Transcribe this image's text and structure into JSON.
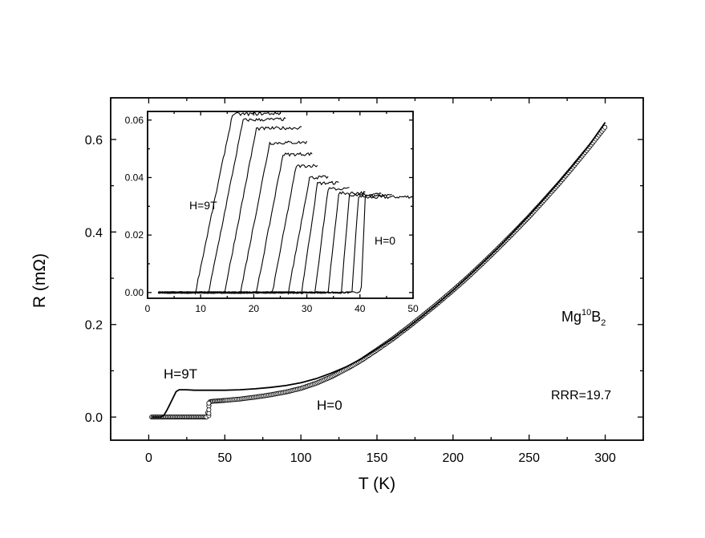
{
  "chart_data": [
    {
      "type": "line",
      "xlabel": "T (K)",
      "ylabel": "R (mΩ)",
      "xlim": [
        -25,
        325
      ],
      "ylim": [
        -0.05,
        0.69
      ],
      "xticks": [
        0,
        50,
        100,
        150,
        200,
        250,
        300
      ],
      "yticks": [
        0.0,
        0.2,
        0.4,
        0.6
      ],
      "ytick_labels": [
        "0.0",
        "0.2",
        "0.4",
        "0.6"
      ],
      "series": [
        {
          "name": "H=0",
          "marker": "open-circle",
          "x": [
            2,
            10,
            20,
            30,
            35,
            38,
            39,
            40,
            42,
            50,
            60,
            70,
            80,
            90,
            100,
            110,
            120,
            130,
            140,
            150,
            160,
            170,
            180,
            190,
            200,
            210,
            220,
            230,
            240,
            250,
            260,
            270,
            280,
            290,
            300
          ],
          "y": [
            0.0,
            0.0,
            0.0,
            0.0,
            0.0,
            0.0,
            0.012,
            0.033,
            0.034,
            0.036,
            0.039,
            0.043,
            0.048,
            0.054,
            0.062,
            0.073,
            0.087,
            0.104,
            0.123,
            0.145,
            0.168,
            0.193,
            0.219,
            0.246,
            0.274,
            0.303,
            0.334,
            0.366,
            0.399,
            0.433,
            0.469,
            0.506,
            0.545,
            0.585,
            0.627
          ]
        },
        {
          "name": "H=9T",
          "marker": "line",
          "x": [
            2,
            8,
            10,
            12,
            15,
            18,
            20,
            25,
            30,
            40,
            50,
            60,
            70,
            80,
            90,
            100,
            110,
            120,
            130,
            140,
            150,
            160,
            170,
            180,
            190,
            200,
            210,
            220,
            230,
            240,
            250,
            260,
            270,
            280,
            290,
            300
          ],
          "y": [
            0.0,
            0.0,
            0.004,
            0.015,
            0.035,
            0.055,
            0.059,
            0.059,
            0.058,
            0.058,
            0.058,
            0.059,
            0.061,
            0.064,
            0.068,
            0.074,
            0.083,
            0.095,
            0.109,
            0.126,
            0.147,
            0.169,
            0.193,
            0.219,
            0.246,
            0.274,
            0.304,
            0.335,
            0.367,
            0.401,
            0.436,
            0.472,
            0.51,
            0.549,
            0.59,
            0.637
          ]
        }
      ],
      "annotations": {
        "h9t": "H=9T",
        "h0": "H=0",
        "rrr": "RRR=19.7"
      },
      "sample": {
        "base": "Mg",
        "isotope": "10",
        "element": "B",
        "subscript": "2"
      },
      "grid": false,
      "legend": "none"
    },
    {
      "type": "line",
      "xlim": [
        0,
        50
      ],
      "ylim": [
        -0.002,
        0.063
      ],
      "xticks": [
        0,
        10,
        20,
        30,
        40,
        50
      ],
      "yticks": [
        0.0,
        0.02,
        0.04,
        0.06
      ],
      "ytick_labels": [
        "0.00",
        "0.02",
        "0.04",
        "0.06"
      ],
      "curves": [
        {
          "label": "H=0",
          "onset": 40.2,
          "width": 0.8,
          "plateau": 0.033,
          "end": 50
        },
        {
          "onset": 38.5,
          "width": 1.2,
          "plateau": 0.0335,
          "end": 46
        },
        {
          "onset": 36.5,
          "width": 1.5,
          "plateau": 0.034,
          "end": 44
        },
        {
          "onset": 34.0,
          "width": 2.0,
          "plateau": 0.0345,
          "end": 41
        },
        {
          "onset": 31.5,
          "width": 2.5,
          "plateau": 0.036,
          "end": 38
        },
        {
          "onset": 29.0,
          "width": 3.0,
          "plateau": 0.038,
          "end": 36
        },
        {
          "onset": 26.5,
          "width": 4.0,
          "plateau": 0.04,
          "end": 34
        },
        {
          "onset": 23.5,
          "width": 4.5,
          "plateau": 0.044,
          "end": 32
        },
        {
          "onset": 20.5,
          "width": 5.0,
          "plateau": 0.048,
          "end": 31
        },
        {
          "onset": 17.5,
          "width": 5.5,
          "plateau": 0.052,
          "end": 30
        },
        {
          "onset": 14.5,
          "width": 6.0,
          "plateau": 0.057,
          "end": 29
        },
        {
          "onset": 11.5,
          "width": 6.5,
          "plateau": 0.06,
          "end": 26
        },
        {
          "label": "H=9T",
          "onset": 9.0,
          "width": 7.0,
          "plateau": 0.062,
          "end": 25
        }
      ],
      "annotations": {
        "h9t": "H=9T",
        "h0": "H=0"
      }
    }
  ]
}
